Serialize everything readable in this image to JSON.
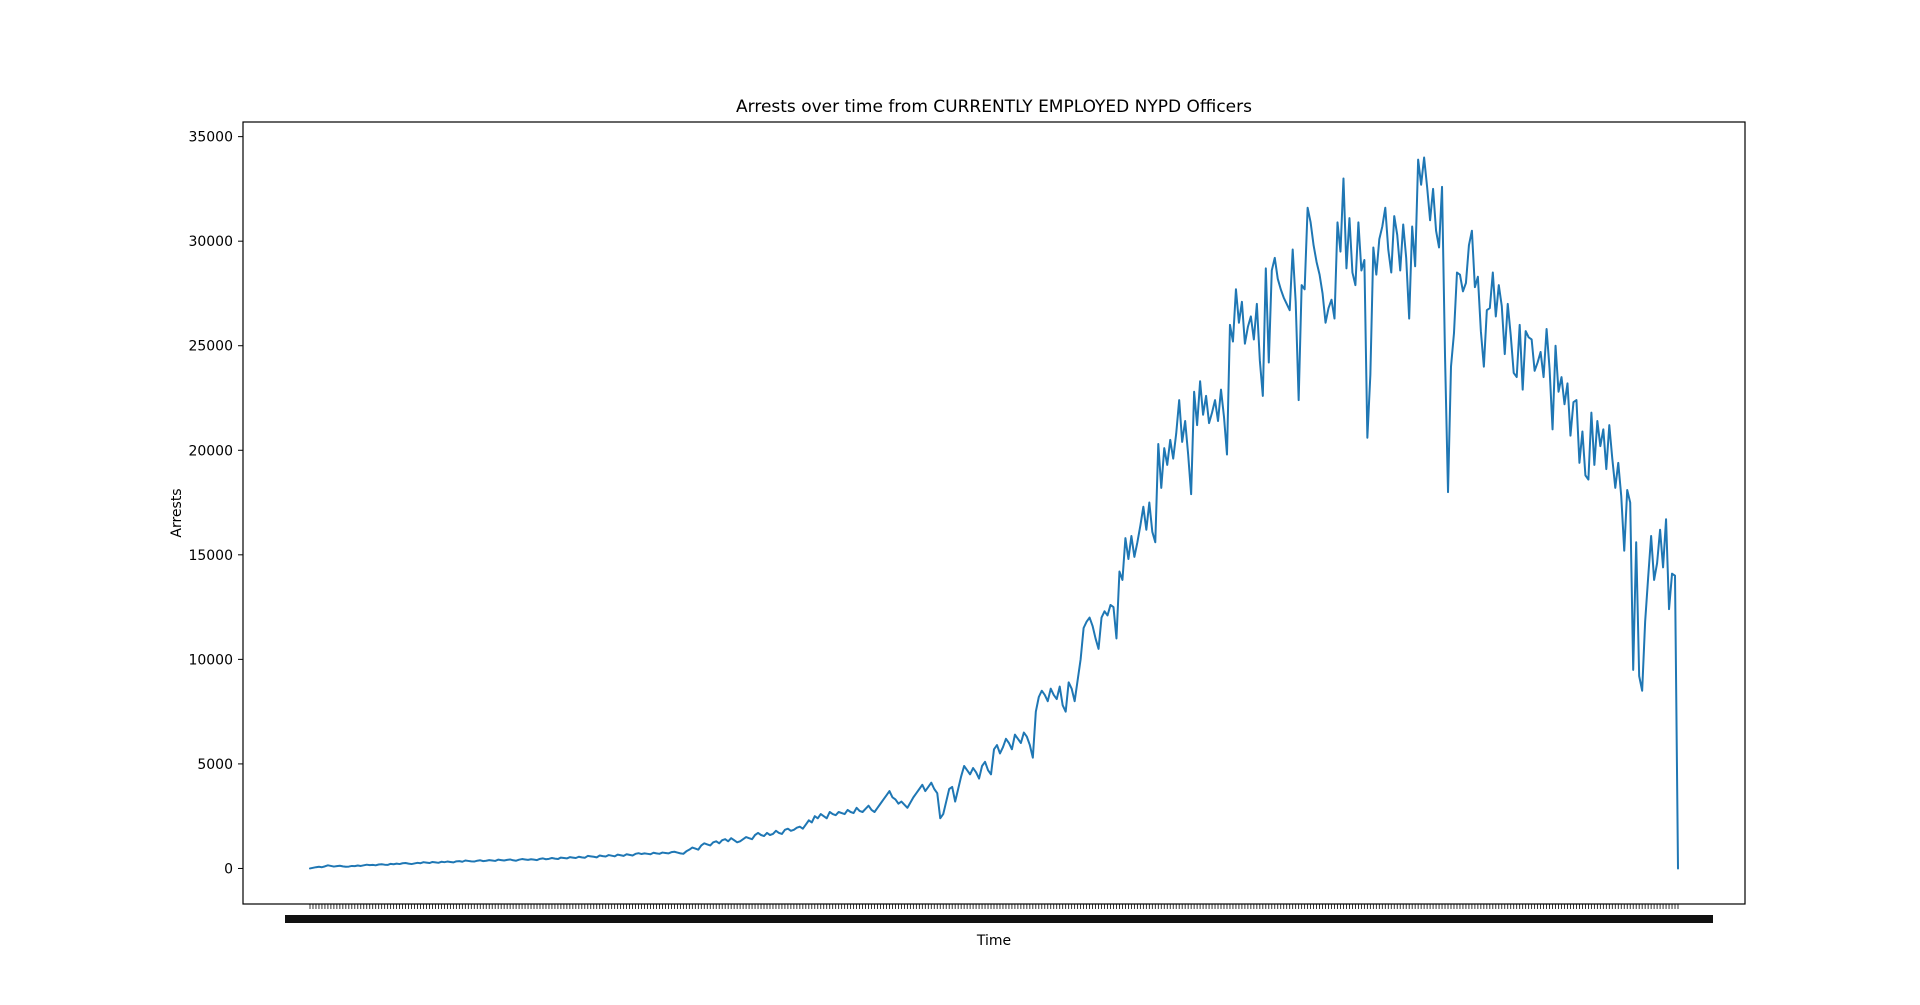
{
  "chart_data": {
    "type": "line",
    "title": "Arrests over time from CURRENTLY EMPLOYED NYPD Officers",
    "xlabel": "Time",
    "ylabel": "Arrests",
    "ylim": [
      -1700,
      35700
    ],
    "y_ticks": [
      0,
      5000,
      10000,
      15000,
      20000,
      25000,
      30000,
      35000
    ],
    "grid": false,
    "legend": "none",
    "series_color": "#1f77b4",
    "x_tick_labels_note": "x tick labels are densely overlapping and illegible",
    "series": [
      {
        "values": [
          0,
          30,
          60,
          80,
          60,
          100,
          150,
          120,
          90,
          110,
          130,
          100,
          80,
          90,
          120,
          110,
          140,
          120,
          150,
          180,
          160,
          170,
          150,
          190,
          200,
          180,
          170,
          220,
          200,
          230,
          210,
          250,
          260,
          230,
          210,
          240,
          270,
          250,
          300,
          280,
          260,
          310,
          290,
          270,
          320,
          300,
          330,
          310,
          290,
          340,
          350,
          320,
          380,
          360,
          340,
          330,
          370,
          390,
          350,
          370,
          400,
          380,
          360,
          420,
          400,
          380,
          410,
          430,
          390,
          370,
          420,
          450,
          430,
          410,
          440,
          420,
          400,
          460,
          480,
          440,
          460,
          500,
          470,
          450,
          520,
          500,
          480,
          540,
          520,
          500,
          560,
          530,
          510,
          600,
          580,
          560,
          530,
          620,
          590,
          570,
          640,
          610,
          580,
          660,
          630,
          600,
          680,
          650,
          620,
          700,
          730,
          690,
          720,
          700,
          680,
          750,
          720,
          700,
          760,
          740,
          720,
          780,
          800,
          760,
          720,
          700,
          820,
          900,
          1000,
          950,
          900,
          1100,
          1200,
          1150,
          1100,
          1250,
          1300,
          1200,
          1350,
          1400,
          1300,
          1450,
          1350,
          1250,
          1300,
          1400,
          1500,
          1450,
          1400,
          1600,
          1700,
          1600,
          1550,
          1700,
          1600,
          1650,
          1800,
          1700,
          1650,
          1850,
          1900,
          1800,
          1850,
          1950,
          2000,
          1900,
          2100,
          2300,
          2200,
          2500,
          2400,
          2600,
          2500,
          2400,
          2700,
          2600,
          2550,
          2700,
          2650,
          2600,
          2800,
          2700,
          2650,
          2900,
          2750,
          2700,
          2850,
          3000,
          2800,
          2700,
          2900,
          3100,
          3300,
          3500,
          3700,
          3400,
          3300,
          3100,
          3200,
          3050,
          2900,
          3150,
          3400,
          3600,
          3800,
          4000,
          3700,
          3900,
          4100,
          3800,
          3600,
          2400,
          2600,
          3200,
          3800,
          3900,
          3200,
          3800,
          4400,
          4900,
          4700,
          4500,
          4800,
          4600,
          4300,
          4900,
          5100,
          4700,
          4500,
          5700,
          5900,
          5500,
          5800,
          6200,
          6000,
          5700,
          6400,
          6200,
          6000,
          6500,
          6300,
          5900,
          5300,
          7500,
          8200,
          8500,
          8300,
          8000,
          8600,
          8300,
          8100,
          8700,
          7800,
          7500,
          8900,
          8600,
          8000,
          9000,
          10000,
          11500,
          11800,
          12000,
          11600,
          11000,
          10500,
          12000,
          12300,
          12100,
          12600,
          12500,
          11000,
          14200,
          13800,
          15800,
          14800,
          15900,
          14900,
          15600,
          16400,
          17300,
          16200,
          17500,
          16100,
          15600,
          20300,
          18200,
          20100,
          19300,
          20500,
          19600,
          20800,
          22400,
          20400,
          21400,
          19800,
          17900,
          22800,
          21200,
          23300,
          21700,
          22600,
          21300,
          21800,
          22400,
          21400,
          22900,
          21600,
          19800,
          26000,
          25200,
          27700,
          26100,
          27100,
          25100,
          25900,
          26400,
          25300,
          27000,
          24300,
          22600,
          28700,
          24200,
          28600,
          29200,
          28200,
          27700,
          27300,
          27000,
          26700,
          29600,
          27100,
          22400,
          27900,
          27700,
          31600,
          30900,
          29800,
          29000,
          28400,
          27500,
          26100,
          26800,
          27200,
          26300,
          30900,
          29500,
          33000,
          28700,
          31100,
          28500,
          27900,
          30900,
          28600,
          29100,
          20600,
          23600,
          29700,
          28400,
          30100,
          30700,
          31600,
          29600,
          28500,
          31200,
          30300,
          28600,
          30800,
          29200,
          26300,
          30700,
          28800,
          33900,
          32700,
          34000,
          32600,
          31000,
          32500,
          30500,
          29700,
          32600,
          24500,
          18000,
          24000,
          25600,
          28500,
          28400,
          27600,
          28000,
          29800,
          30500,
          27800,
          28300,
          25700,
          24000,
          26700,
          26800,
          28500,
          26400,
          27900,
          26900,
          24600,
          27000,
          25500,
          23700,
          23500,
          26000,
          22900,
          25700,
          25400,
          25300,
          23800,
          24200,
          24700,
          23500,
          25800,
          23900,
          21000,
          25000,
          22800,
          23500,
          22200,
          23200,
          20700,
          22300,
          22400,
          19400,
          20900,
          18800,
          18600,
          21800,
          19300,
          21400,
          20200,
          21000,
          19100,
          21200,
          19600,
          18200,
          19400,
          17800,
          15200,
          18100,
          17500,
          9500,
          15600,
          9200,
          8500,
          11800,
          13900,
          15900,
          13800,
          14600,
          16200,
          14400,
          16700,
          12400,
          14100,
          14000,
          0
        ]
      }
    ]
  }
}
